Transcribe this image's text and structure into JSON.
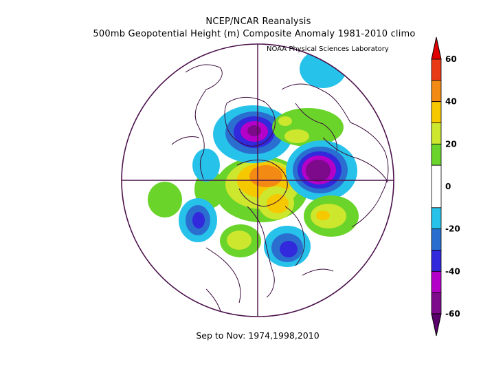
{
  "title_line1": "NCEP/NCAR Reanalysis",
  "title_line2": "500mb Geopotential Height (m) Composite Anomaly 1981-2010 climo",
  "credit": "NOAA Physical Sciences Laboratory",
  "caption": "Sep to Nov: 1974,1998,2010",
  "colorbar": {
    "labels": [
      "60",
      "40",
      "20",
      "0",
      "-20",
      "-40",
      "-60"
    ],
    "bands": [
      {
        "range": "50 to 60",
        "color": "#e83a14"
      },
      {
        "range": "40 to 50",
        "color": "#f28a14"
      },
      {
        "range": "30 to 40",
        "color": "#f6c800"
      },
      {
        "range": "20 to 30",
        "color": "#cde62e"
      },
      {
        "range": "10 to 20",
        "color": "#6ad42a"
      },
      {
        "range": "-10 to 10",
        "color": "#ffffff"
      },
      {
        "range": "-20 to -10",
        "color": "#26c2ea"
      },
      {
        "range": "-30 to -20",
        "color": "#2a6ed0"
      },
      {
        "range": "-40 to -30",
        "color": "#3228dc"
      },
      {
        "range": "-50 to -40",
        "color": "#b400c8"
      },
      {
        "range": "-60 to -50",
        "color": "#7d0a8a"
      }
    ],
    "top_arrow_color": "#e10000",
    "bottom_arrow_color": "#5a006a"
  },
  "colors": {
    "coast": "#3a0a3a",
    "frame": "#4a104a"
  }
}
